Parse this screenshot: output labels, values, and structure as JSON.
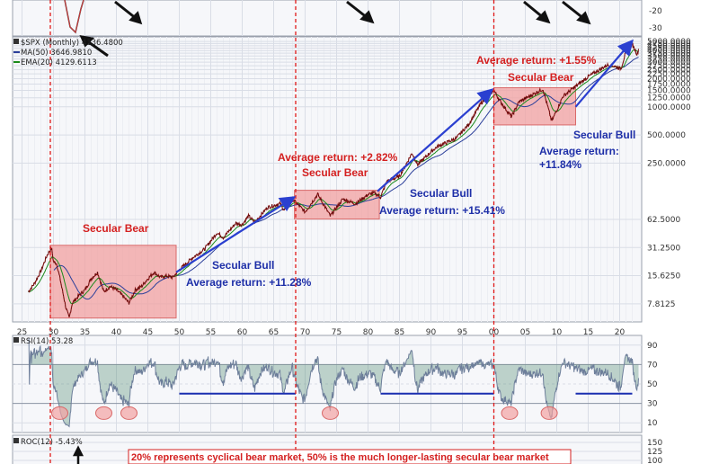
{
  "chart_data": {
    "type": "line",
    "price_panel": {
      "legend": [
        {
          "label": "$SPX (Monthly) 4136.4800",
          "color": "#222222"
        },
        {
          "label": "MA(50) 3646.9810",
          "color": "#2b3f9a"
        },
        {
          "label": "EMA(20) 4129.6113",
          "color": "#1a8a1a"
        }
      ],
      "y_scale": "log",
      "y_ticks": [
        "7.8125",
        "15.6250",
        "31.2500",
        "62.5000",
        "250.0000",
        "500.0000",
        "1000.0000",
        "1250.0000",
        "1500.0000",
        "1750.0000",
        "2000.0000",
        "2250.0000",
        "2500.0000",
        "2750.0000",
        "3000.0000",
        "3250.0000",
        "3500.0000",
        "3750.0000",
        "4000.0000",
        "4250.0000",
        "4500.0000",
        "4750.0000",
        "5000.0000"
      ],
      "x_ticks": [
        "25",
        "30",
        "35",
        "40",
        "45",
        "50",
        "55",
        "60",
        "65",
        "70",
        "75",
        "80",
        "85",
        "90",
        "95",
        "00",
        "05",
        "10",
        "15",
        "20"
      ],
      "x_tick_years": [
        1925,
        1930,
        1935,
        1940,
        1945,
        1950,
        1955,
        1960,
        1965,
        1970,
        1975,
        1980,
        1985,
        1990,
        1995,
        2000,
        2005,
        2010,
        2015,
        2020
      ],
      "x_range": [
        1923.5,
        2023.5
      ],
      "y_range": [
        5.0,
        5600
      ],
      "series": [
        {
          "kind": "price",
          "points": [
            [
              1926,
              10.5
            ],
            [
              1927,
              13
            ],
            [
              1928,
              17.5
            ],
            [
              1929,
              26
            ],
            [
              1929.7,
              31
            ],
            [
              1930,
              22
            ],
            [
              1930.5,
              21
            ],
            [
              1931,
              15
            ],
            [
              1932,
              7
            ],
            [
              1932.5,
              5.5
            ],
            [
              1933,
              8
            ],
            [
              1934,
              9.5
            ],
            [
              1935,
              11
            ],
            [
              1936,
              14.5
            ],
            [
              1937,
              17
            ],
            [
              1938,
              10.5
            ],
            [
              1939,
              12
            ],
            [
              1940,
              11
            ],
            [
              1941,
              9.5
            ],
            [
              1942,
              8
            ],
            [
              1943,
              11
            ],
            [
              1944,
              12
            ],
            [
              1945,
              14.5
            ],
            [
              1946,
              17
            ],
            [
              1947,
              15
            ],
            [
              1948,
              15.5
            ],
            [
              1949,
              15
            ],
            [
              1950,
              18
            ],
            [
              1952,
              24
            ],
            [
              1954,
              30
            ],
            [
              1956,
              45
            ],
            [
              1957,
              40
            ],
            [
              1959,
              57
            ],
            [
              1960,
              55
            ],
            [
              1961,
              68
            ],
            [
              1962,
              58
            ],
            [
              1964,
              84
            ],
            [
              1966,
              92
            ],
            [
              1966.7,
              78
            ],
            [
              1968,
              103
            ],
            [
              1970,
              75
            ],
            [
              1972,
              116
            ],
            [
              1974,
              68
            ],
            [
              1976,
              103
            ],
            [
              1978,
              92
            ],
            [
              1980,
              115
            ],
            [
              1981,
              120
            ],
            [
              1982,
              108
            ],
            [
              1983,
              160
            ],
            [
              1985,
              180
            ],
            [
              1987,
              320
            ],
            [
              1987.9,
              240
            ],
            [
              1990,
              330
            ],
            [
              1991,
              375
            ],
            [
              1994,
              460
            ],
            [
              1996,
              650
            ],
            [
              1998,
              1100
            ],
            [
              2000,
              1500
            ],
            [
              2001,
              1150
            ],
            [
              2002.8,
              780
            ],
            [
              2004,
              1130
            ],
            [
              2007.8,
              1550
            ],
            [
              2009.2,
              700
            ],
            [
              2011,
              1300
            ],
            [
              2013,
              1650
            ],
            [
              2015,
              2100
            ],
            [
              2018,
              2800
            ],
            [
              2019,
              2750
            ],
            [
              2020.2,
              2550
            ],
            [
              2021,
              3900
            ],
            [
              2022,
              4700
            ],
            [
              2022.8,
              3600
            ],
            [
              2023,
              4136
            ]
          ]
        }
      ],
      "secular_markers_years": [
        1929.5,
        1968.5,
        2000.0
      ],
      "shaded_zones": [
        {
          "from": 1929.5,
          "to": 1949.5,
          "low": 5.5,
          "high": 33
        },
        {
          "from": 1968.3,
          "to": 1981.8,
          "low": 63,
          "high": 128
        },
        {
          "from": 2000.0,
          "to": 2013.0,
          "low": 640,
          "high": 1600
        }
      ],
      "annotations": [
        {
          "text": "Secular Bear",
          "color": "red"
        },
        {
          "text": "Secular Bull",
          "color": "blue"
        },
        {
          "text": "Average return:  +11.28%",
          "color": "blue"
        },
        {
          "text": "Average return:  +2.82%",
          "color": "red"
        },
        {
          "text": "Secular Bear",
          "color": "red"
        },
        {
          "text": "Secular Bull",
          "color": "blue"
        },
        {
          "text": "Average return:  +15.41%",
          "color": "blue"
        },
        {
          "text": "Average return:  +1.55%",
          "color": "red"
        },
        {
          "text": "Secular Bear",
          "color": "red"
        },
        {
          "text": "Secular Bull",
          "color": "blue"
        },
        {
          "text": "Average return:",
          "color": "blue"
        },
        {
          "text": "+11.84%",
          "color": "blue"
        }
      ]
    },
    "top_panel": {
      "y_ticks": [
        "-20",
        "-30"
      ]
    },
    "rsi_panel": {
      "legend": "RSI(14) 53.28",
      "y_ticks": [
        "90",
        "70",
        "50",
        "30",
        "10"
      ],
      "y_range": [
        0,
        100
      ]
    },
    "roc_panel": {
      "legend": "ROC(12) -5.43%",
      "y_ticks": [
        "150",
        "125",
        "100"
      ],
      "note": "20% represents cyclical bear market, 50% is the much longer-lasting secular bear market"
    },
    "colors": {
      "bear_zone_fill": "#f2a0a0",
      "bear_zone_stroke": "#d96a6a",
      "secular_line": "#e01818",
      "bull_arrow": "#2a3fd0",
      "rsi_line": "#6d7e9a",
      "rsi_fill": "#4f8a6f",
      "support_line": "#1a2fb0"
    }
  }
}
